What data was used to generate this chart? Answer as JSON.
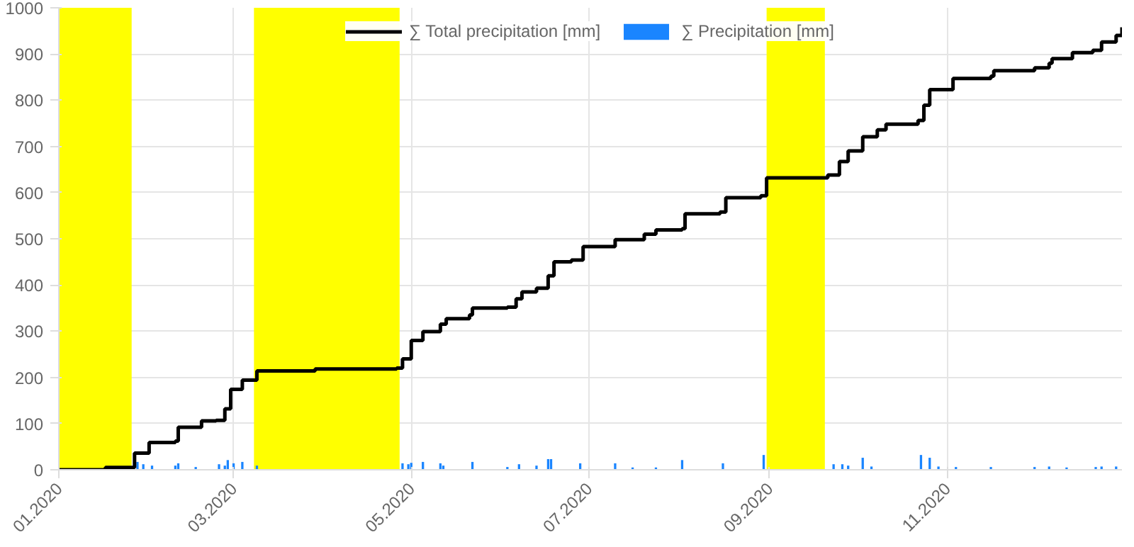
{
  "chart_data": {
    "type": "step",
    "xlim": [
      "2020-01-01",
      "2020-12-31"
    ],
    "ylim": [
      0,
      1000
    ],
    "xticks": [
      {
        "value": "2020-01-01",
        "label": "01.2020"
      },
      {
        "value": "2020-03-01",
        "label": "03.2020"
      },
      {
        "value": "2020-05-01",
        "label": "05.2020"
      },
      {
        "value": "2020-07-01",
        "label": "07.2020"
      },
      {
        "value": "2020-09-01",
        "label": "09.2020"
      },
      {
        "value": "2020-11-01",
        "label": "11.2020"
      }
    ],
    "yticks": [
      0,
      100,
      200,
      300,
      400,
      500,
      600,
      700,
      800,
      900,
      1000
    ],
    "grid": true,
    "legend": "top",
    "bands": [
      {
        "axis": "x",
        "from": "2020-01-01",
        "to": "2020-01-26",
        "label": null,
        "color": "#ffff00"
      },
      {
        "axis": "x",
        "from": "2020-03-08",
        "to": "2020-04-27",
        "label": null,
        "color": "#ffff00"
      },
      {
        "axis": "x",
        "from": "2020-08-31",
        "to": "2020-09-20",
        "label": null,
        "color": "#ffff00"
      }
    ],
    "series": [
      {
        "name": "∑ Precipitation [mm]",
        "type": "bar",
        "color": "#1a85ff",
        "x": [
          "2020-01-28",
          "2020-01-30",
          "2020-02-02",
          "2020-02-10",
          "2020-02-11",
          "2020-02-17",
          "2020-02-25",
          "2020-02-27",
          "2020-02-28",
          "2020-03-01",
          "2020-03-04",
          "2020-03-09",
          "2020-04-28",
          "2020-04-30",
          "2020-05-01",
          "2020-05-05",
          "2020-05-11",
          "2020-05-12",
          "2020-05-22",
          "2020-06-03",
          "2020-06-07",
          "2020-06-13",
          "2020-06-17",
          "2020-06-18",
          "2020-06-28",
          "2020-07-10",
          "2020-07-16",
          "2020-07-24",
          "2020-08-02",
          "2020-08-16",
          "2020-08-30",
          "2020-09-23",
          "2020-09-26",
          "2020-09-28",
          "2020-10-03",
          "2020-10-06",
          "2020-10-23",
          "2020-10-26",
          "2020-10-29",
          "2020-11-04",
          "2020-11-16",
          "2020-12-01",
          "2020-12-06",
          "2020-12-12",
          "2020-12-22",
          "2020-12-24",
          "2020-12-29"
        ],
        "values": [
          17,
          12,
          9,
          9,
          14,
          6,
          12,
          9,
          21,
          14,
          17,
          9,
          14,
          12,
          15,
          17,
          14,
          9,
          17,
          6,
          12,
          9,
          23,
          23,
          14,
          14,
          5,
          5,
          21,
          14,
          32,
          12,
          12,
          9,
          26,
          7,
          32,
          26,
          7,
          6,
          6,
          6,
          7,
          5,
          6,
          7,
          7
        ]
      },
      {
        "name": "∑ Total precipitation [mm]",
        "color": "#000000",
        "x": [
          "2020-01-01",
          "2020-01-17",
          "2020-01-27",
          "2020-02-01",
          "2020-02-10",
          "2020-02-11",
          "2020-02-19",
          "2020-02-24",
          "2020-02-27",
          "2020-02-29",
          "2020-03-04",
          "2020-03-09",
          "2020-03-29",
          "2020-04-26",
          "2020-04-28",
          "2020-05-01",
          "2020-05-05",
          "2020-05-11",
          "2020-05-13",
          "2020-05-21",
          "2020-05-22",
          "2020-06-03",
          "2020-06-06",
          "2020-06-08",
          "2020-06-13",
          "2020-06-17",
          "2020-06-19",
          "2020-06-25",
          "2020-06-29",
          "2020-07-10",
          "2020-07-20",
          "2020-07-24",
          "2020-08-02",
          "2020-08-03",
          "2020-08-15",
          "2020-08-17",
          "2020-08-29",
          "2020-08-31",
          "2020-09-21",
          "2020-09-25",
          "2020-09-28",
          "2020-10-03",
          "2020-10-08",
          "2020-10-11",
          "2020-10-22",
          "2020-10-24",
          "2020-10-26",
          "2020-11-03",
          "2020-11-16",
          "2020-11-17",
          "2020-12-01",
          "2020-12-06",
          "2020-12-07",
          "2020-12-14",
          "2020-12-21",
          "2020-12-24",
          "2020-12-29",
          "2020-12-31"
        ],
        "values": [
          0,
          5,
          36,
          59,
          62,
          92,
          106,
          107,
          132,
          174,
          194,
          214,
          218,
          220,
          240,
          280,
          299,
          315,
          327,
          335,
          350,
          352,
          370,
          385,
          393,
          420,
          450,
          454,
          483,
          498,
          510,
          519,
          522,
          554,
          558,
          589,
          593,
          632,
          638,
          667,
          690,
          721,
          736,
          748,
          756,
          789,
          823,
          847,
          852,
          864,
          870,
          880,
          890,
          903,
          908,
          926,
          940,
          958
        ]
      }
    ]
  }
}
